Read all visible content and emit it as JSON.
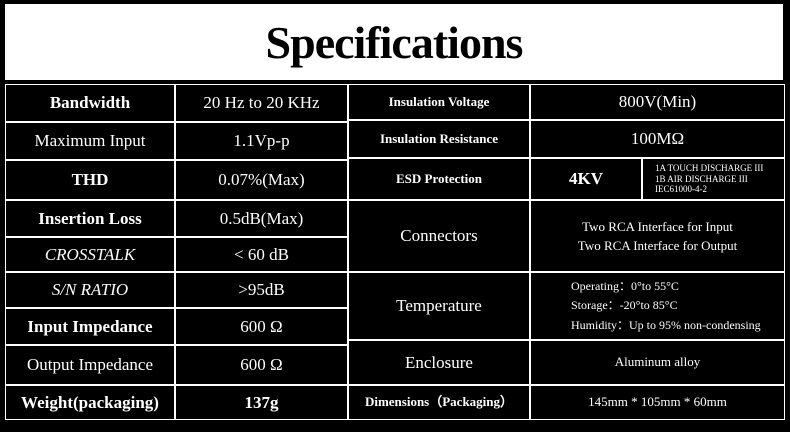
{
  "title": "Specifications",
  "left_rows": [
    {
      "label": "Bandwidth",
      "value": "20 Hz to 20 KHz"
    },
    {
      "label": "Maximum Input",
      "value": "1.1Vp-p"
    },
    {
      "label": "THD",
      "value": "0.07%(Max)"
    },
    {
      "label": "Insertion Loss",
      "value": "0.5dB(Max)"
    },
    {
      "label": "CROSSTALK",
      "value": "< 60 dB"
    },
    {
      "label": "S/N RATIO",
      "value": ">95dB"
    },
    {
      "label": "Input Impedance",
      "value": "600 Ω"
    },
    {
      "label": "Output Impedance",
      "value": "600 Ω"
    },
    {
      "label": "Weight(packaging)",
      "value": "137g"
    }
  ],
  "right_rows": [
    {
      "label": "Insulation Voltage",
      "value": "800V(Min)"
    },
    {
      "label": "Insulation Resistance",
      "value": "100MΩ"
    },
    {
      "label": "ESD Protection",
      "value": "4KV",
      "notes": [
        "1A TOUCH DISCHARGE III",
        "1B AIR DISCHARGE III",
        "IEC61000-4-2"
      ]
    },
    {
      "label": "Connectors",
      "lines": [
        "Two RCA Interface for Input",
        "Two RCA Interface for Output"
      ]
    },
    {
      "label": "Temperature",
      "lines": [
        "Operating：0°to 55°C",
        "Storage：-20°to 85°C",
        "Humidity：Up to 95% non-condensing"
      ]
    },
    {
      "label": "Enclosure",
      "value": "Aluminum alloy"
    },
    {
      "label": "Dimensions（Packaging）",
      "value": "145mm * 105mm * 60mm"
    }
  ]
}
